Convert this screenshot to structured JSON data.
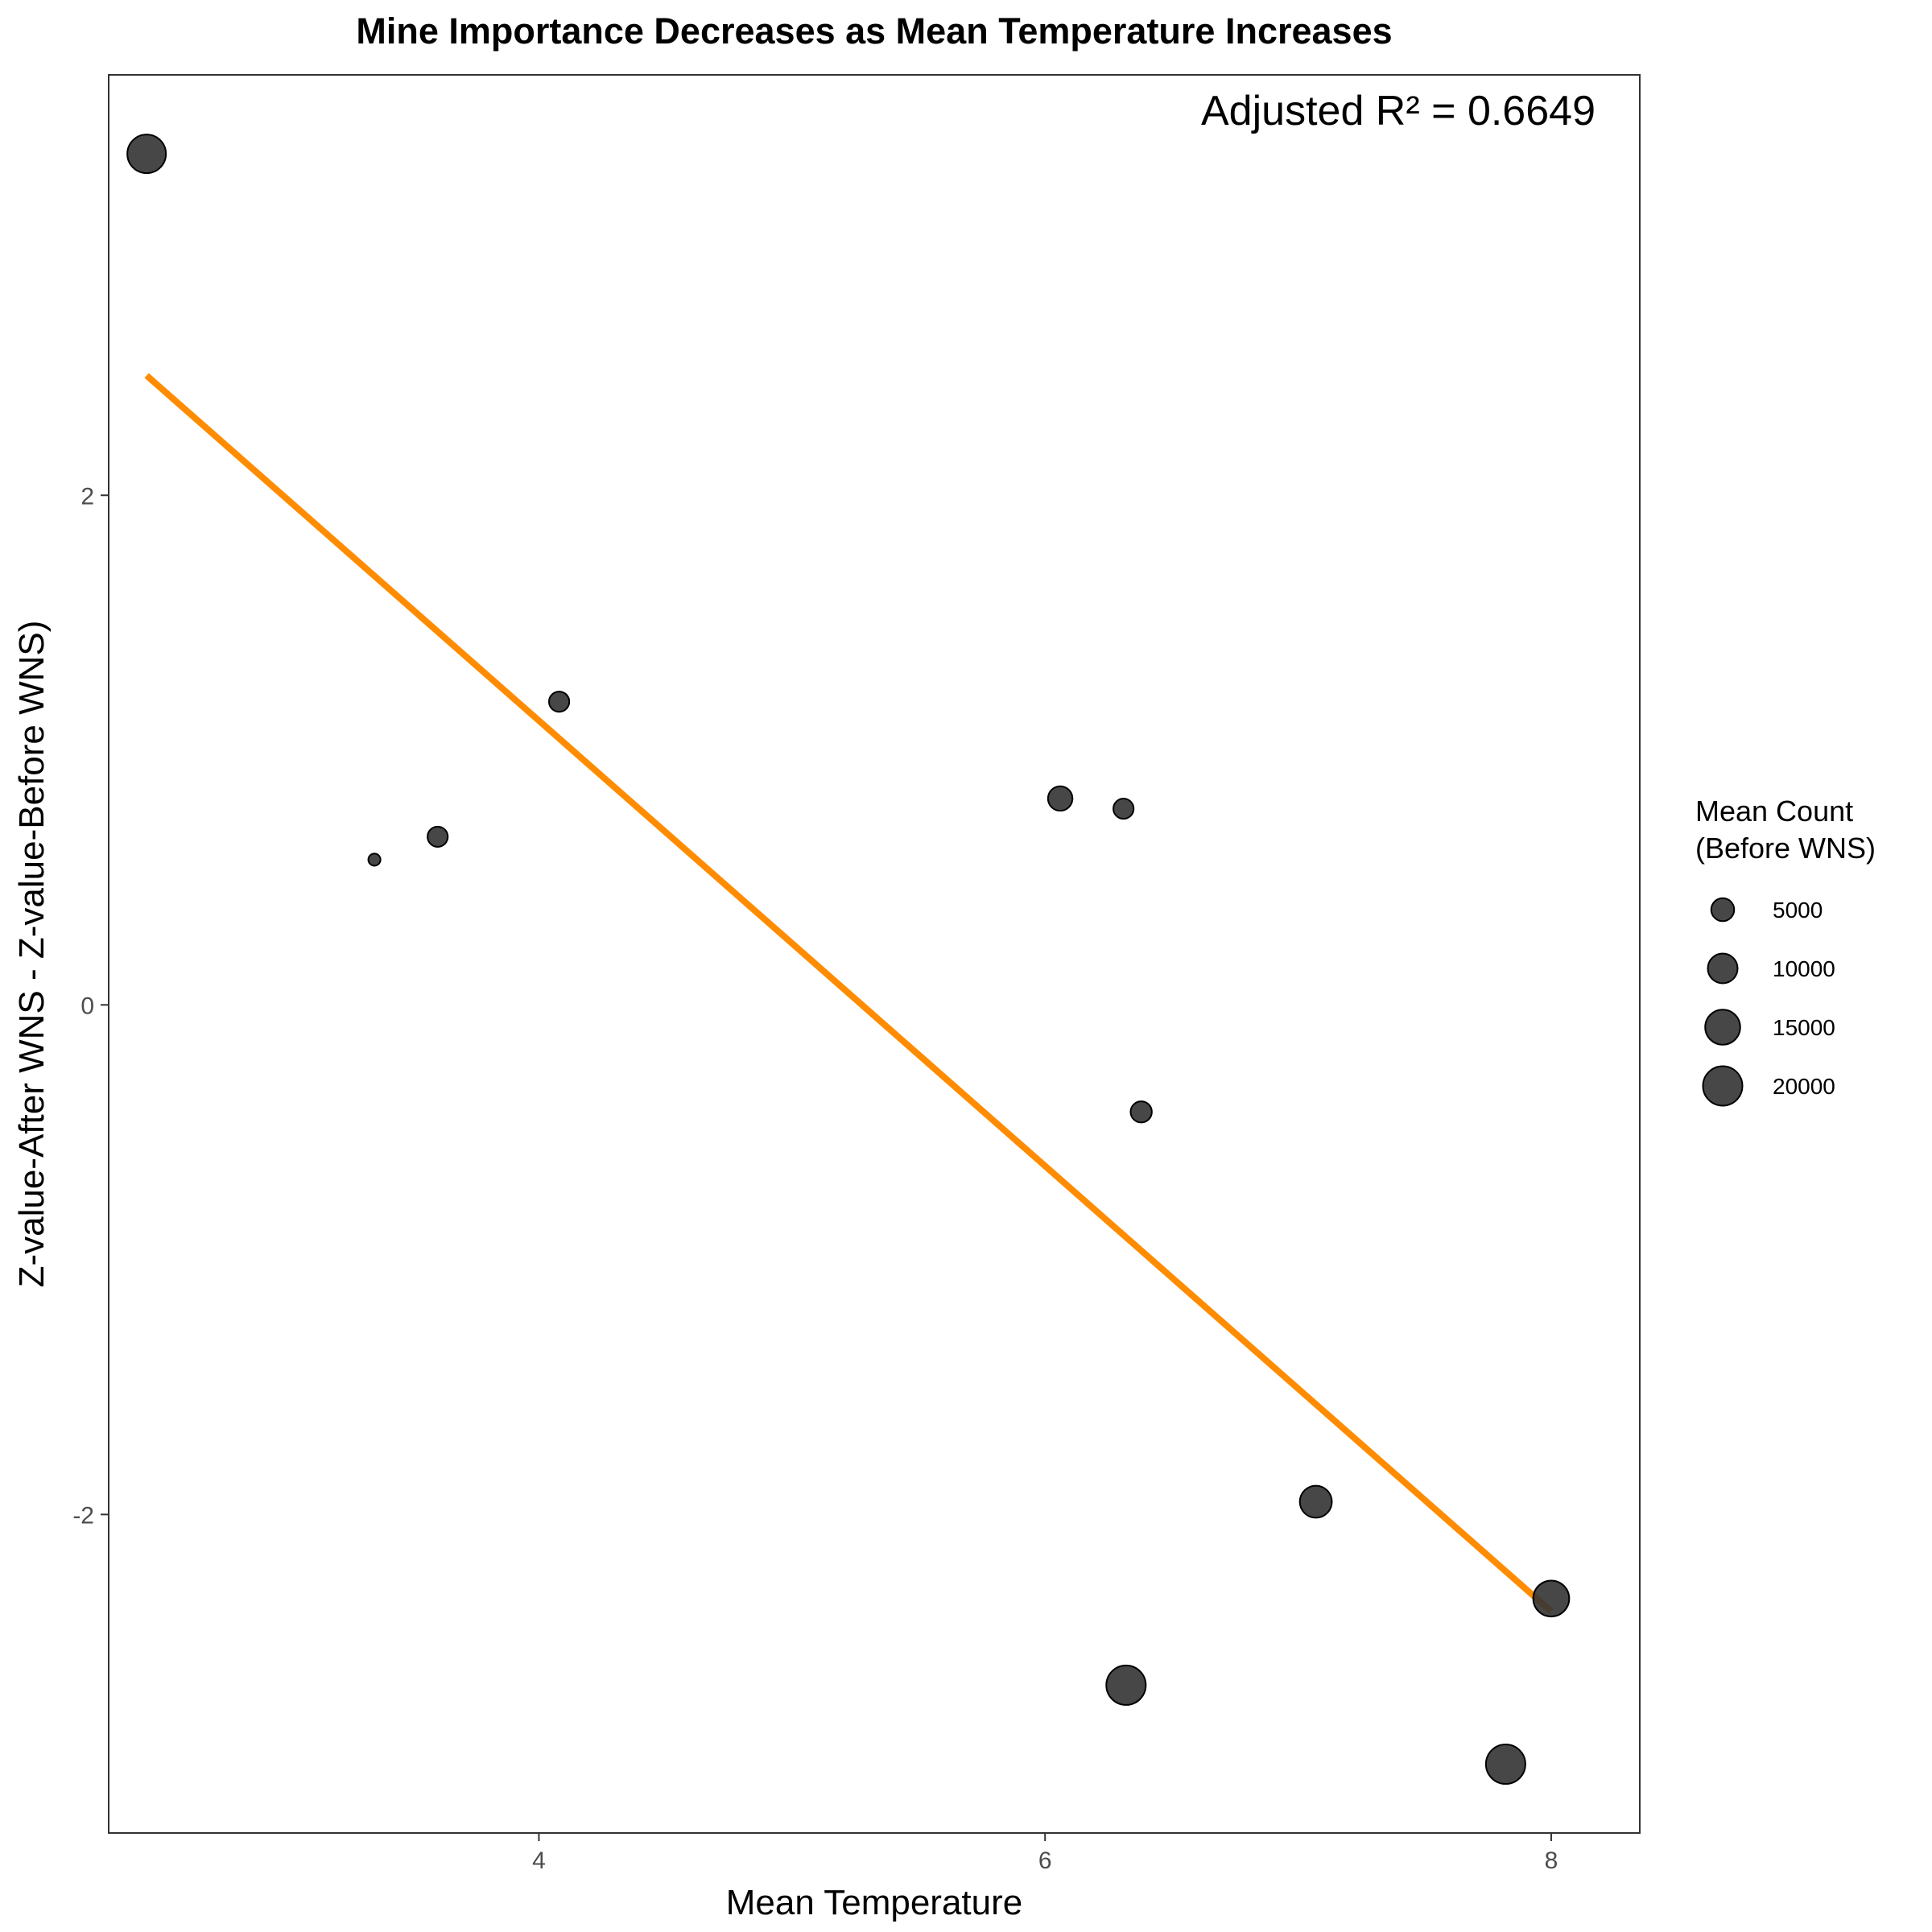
{
  "chart_data": {
    "type": "scatter",
    "title": "Mine Importance Decreases as Mean Temperature Increases",
    "xlabel": "Mean Temperature",
    "ylabel": "Z-value-After WNS - Z-value-Before WNS)",
    "annotation": "Adjusted R² = 0.6649",
    "xlim": [
      2.3,
      8.35
    ],
    "ylim": [
      -3.25,
      3.65
    ],
    "x_ticks": [
      4,
      6,
      8
    ],
    "y_ticks": [
      2,
      0,
      -2
    ],
    "grid": false,
    "point_color": "#333333",
    "point_opacity": 0.9,
    "trend_color": "#FF8C00",
    "trendline": {
      "x": [
        2.45,
        8.0
      ],
      "y": [
        2.47,
        -2.38
      ]
    },
    "points": [
      {
        "x": 2.45,
        "y": 3.34,
        "size": 19000
      },
      {
        "x": 3.35,
        "y": 0.57,
        "size": 600
      },
      {
        "x": 3.6,
        "y": 0.66,
        "size": 3500
      },
      {
        "x": 4.08,
        "y": 1.19,
        "size": 3500
      },
      {
        "x": 6.06,
        "y": 0.81,
        "size": 6000
      },
      {
        "x": 6.31,
        "y": 0.77,
        "size": 3500
      },
      {
        "x": 6.38,
        "y": -0.42,
        "size": 4000
      },
      {
        "x": 6.32,
        "y": -2.67,
        "size": 20000
      },
      {
        "x": 7.07,
        "y": -1.95,
        "size": 12000
      },
      {
        "x": 7.82,
        "y": -2.98,
        "size": 20000
      },
      {
        "x": 8.0,
        "y": -2.33,
        "size": 16000
      }
    ],
    "legend": {
      "title_line1": "Mean Count",
      "title_line2": "(Before WNS)",
      "placement": "right",
      "entries": [
        {
          "label": "5000",
          "size": 5000
        },
        {
          "label": "10000",
          "size": 10000
        },
        {
          "label": "15000",
          "size": 15000
        },
        {
          "label": "20000",
          "size": 20000
        }
      ]
    }
  }
}
